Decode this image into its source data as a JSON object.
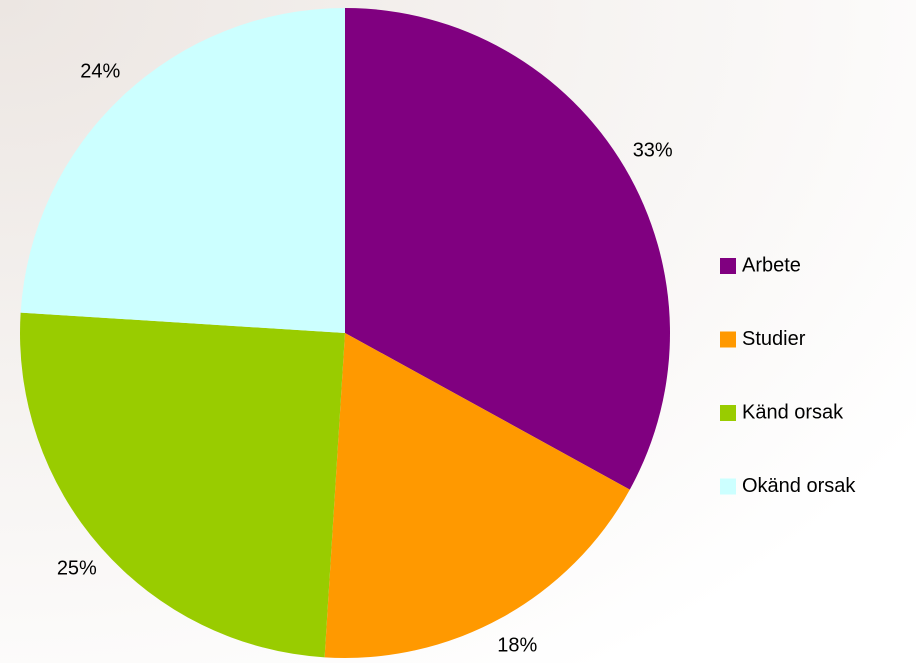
{
  "chart_data": {
    "type": "pie",
    "categories": [
      "Arbete",
      "Studier",
      "Känd orsak",
      "Okänd orsak"
    ],
    "values": [
      33,
      18,
      25,
      24
    ],
    "value_labels": [
      "33%",
      "18%",
      "25%",
      "24%"
    ],
    "colors": [
      "#800080",
      "#ff9900",
      "#99cc00",
      "#ccffff"
    ],
    "legend": "right"
  }
}
